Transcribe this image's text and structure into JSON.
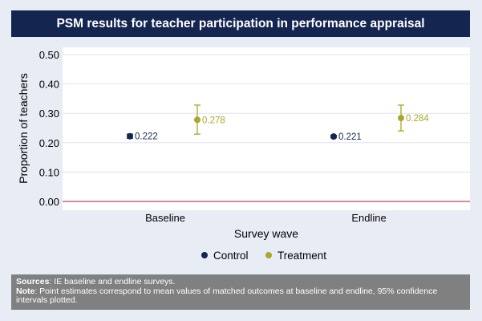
{
  "chart_data": {
    "type": "scatter",
    "title": "PSM results for teacher participation in performance appraisal",
    "xlabel": "Survey wave",
    "ylabel": "Proportion of teachers",
    "categories": [
      "Baseline",
      "Endline"
    ],
    "ylim": [
      0,
      0.5
    ],
    "yticks": [
      "0.00",
      "0.10",
      "0.20",
      "0.30",
      "0.40",
      "0.50"
    ],
    "grid": true,
    "legend_position": "bottom",
    "reference_line": 0,
    "series": [
      {
        "name": "Control",
        "color": "#14254f",
        "values": [
          0.222,
          0.221
        ],
        "ci_low": [
          0.215,
          0.217
        ],
        "ci_high": [
          0.229,
          0.225
        ],
        "labels": [
          "0.222",
          "0.221"
        ]
      },
      {
        "name": "Treatment",
        "color": "#a8a82a",
        "values": [
          0.278,
          0.284
        ],
        "ci_low": [
          0.229,
          0.24
        ],
        "ci_high": [
          0.328,
          0.328
        ],
        "labels": [
          "0.278",
          "0.284"
        ]
      }
    ]
  },
  "notes": {
    "sources_label": "Sources",
    "sources_text": ": IE baseline and endline surveys.",
    "note_label": "Note",
    "note_text": ": Point estimates correspond to mean values of matched outcomes at baseline and endline, 95% confidence intervals plotted."
  },
  "colors": {
    "title_bg": "#14254f",
    "panel_bg": "#e8ecf5",
    "reference_line": "#c0456a",
    "note_bg": "#808080"
  }
}
